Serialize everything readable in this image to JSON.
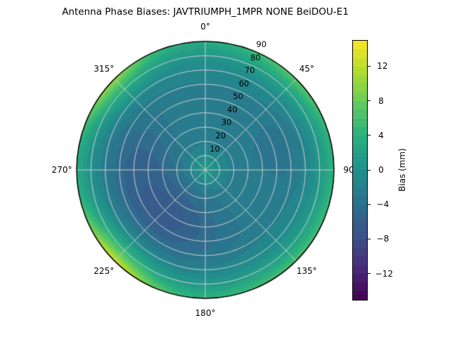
{
  "chart_data": {
    "type": "heatmap",
    "projection": "polar",
    "title": "Antenna Phase Biases: JAVTRIUMPH_1MPR NONE BeiDOU-E1",
    "theta_ticks": [
      {
        "angle_deg": 0,
        "label": "0°"
      },
      {
        "angle_deg": 45,
        "label": "45°"
      },
      {
        "angle_deg": 90,
        "label": "90"
      },
      {
        "angle_deg": 135,
        "label": "135°"
      },
      {
        "angle_deg": 180,
        "label": "180°"
      },
      {
        "angle_deg": 225,
        "label": "225°"
      },
      {
        "angle_deg": 270,
        "label": "270°"
      },
      {
        "angle_deg": 315,
        "label": "315°"
      }
    ],
    "r_ticks": [
      10,
      20,
      30,
      40,
      50,
      60,
      70,
      80,
      90
    ],
    "r_max": 90,
    "r_label_angle_deg": 24,
    "grid": true,
    "grid_color": "#cfcfcf",
    "outline_color": "#000000",
    "colorbar": {
      "label": "Bias (mm)",
      "ticks": [
        {
          "value": 12,
          "label": "12"
        },
        {
          "value": 8,
          "label": "8"
        },
        {
          "value": 4,
          "label": "4"
        },
        {
          "value": 0,
          "label": "0"
        },
        {
          "value": -4,
          "label": "−4"
        },
        {
          "value": -8,
          "label": "−8"
        },
        {
          "value": -12,
          "label": "−12"
        }
      ],
      "vmin": -15,
      "vmax": 15,
      "band_step_mm": 1,
      "colormap": "viridis"
    },
    "field_model_mm": {
      "base": -2.3,
      "center_bump": {
        "amp": 3.2,
        "sigma_rho": 0.13
      },
      "lobes": [
        {
          "az_deg": 222,
          "amp": -4.2,
          "sigma_az_deg": 55,
          "rho0": 0.45,
          "sigma_rho": 0.3
        },
        {
          "az_deg": 285,
          "amp": -1.8,
          "sigma_az_deg": 35,
          "rho0": 0.55,
          "sigma_rho": 0.35
        },
        {
          "az_deg": 74,
          "amp": -1.2,
          "sigma_az_deg": 30,
          "rho0": 0.62,
          "sigma_rho": 0.3
        }
      ],
      "rim": {
        "start_rho": 0.52,
        "power": 2.6,
        "base_amp": 5.6,
        "bumps": [
          {
            "az_deg": 225,
            "amp": 9.8,
            "sigma_az_deg": 24
          },
          {
            "az_deg": 312,
            "amp": 7.2,
            "sigma_az_deg": 22
          },
          {
            "az_deg": 45,
            "amp": 3.9,
            "sigma_az_deg": 28
          },
          {
            "az_deg": 135,
            "amp": 3.0,
            "sigma_az_deg": 45
          }
        ]
      }
    },
    "viridis_stops": [
      [
        0.0,
        "#440154"
      ],
      [
        0.125,
        "#472d7b"
      ],
      [
        0.25,
        "#3b528b"
      ],
      [
        0.375,
        "#2c728e"
      ],
      [
        0.5,
        "#21918c"
      ],
      [
        0.625,
        "#28ae80"
      ],
      [
        0.75,
        "#5ec962"
      ],
      [
        0.875,
        "#addc30"
      ],
      [
        1.0,
        "#fde725"
      ]
    ]
  }
}
